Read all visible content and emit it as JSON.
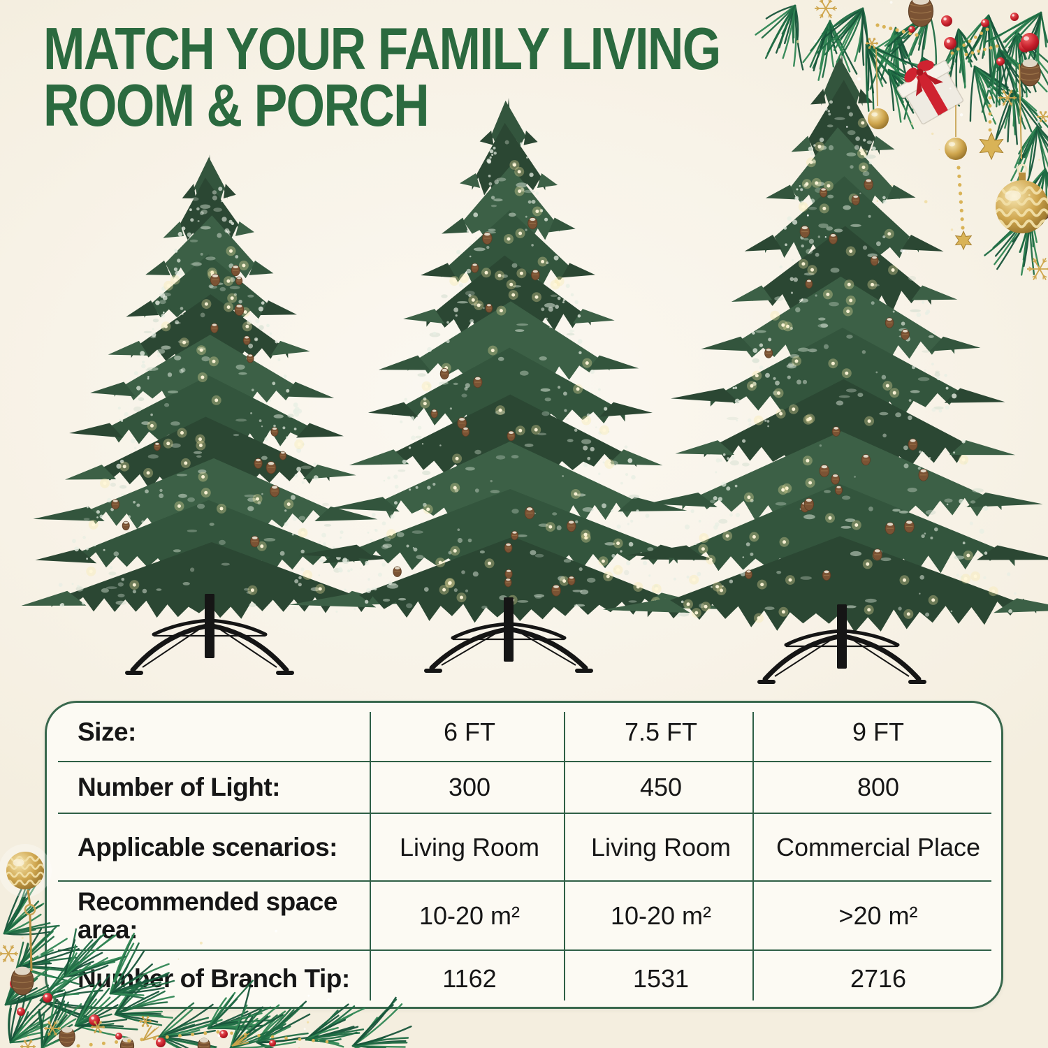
{
  "title": {
    "line1": "MATCH YOUR FAMILY LIVING",
    "line2": "ROOM & PORCH"
  },
  "colors": {
    "background": "#f8f3e8",
    "title_green": "#2b6a3f",
    "table_line_green": "#2f5f45",
    "table_border_green": "#39684d",
    "table_background": "#fcfaf3",
    "text_black": "#161616",
    "tree_green_dark": "#2b4733",
    "tree_green_mid": "#33553d",
    "tree_green_light": "#3c6046",
    "garland_green": "#1f6b43",
    "frost_white": "#e8efe4",
    "light_warm": "#f9e9a6",
    "pinecone_brown": "#7b5334",
    "stand_black": "#151515",
    "gold": "#cfa64e",
    "gold_light": "#f1dfa8",
    "berry_red": "#c8202c",
    "ribbon_red": "#cf2330"
  },
  "table": {
    "rows": [
      {
        "label": "Size:",
        "values": [
          "6 FT",
          "7.5 FT",
          "9 FT"
        ]
      },
      {
        "label": "Number of Light:",
        "values": [
          "300",
          "450",
          "800"
        ]
      },
      {
        "label": "Applicable scenarios:",
        "values": [
          "Living Room",
          "Living Room",
          "Commercial Place"
        ]
      },
      {
        "label": "Recommended space area:",
        "values": [
          "10-20 m²",
          "10-20 m²",
          ">20 m²"
        ]
      },
      {
        "label": "Number of Branch Tip:",
        "values": [
          "1162",
          "1531",
          "2716"
        ]
      }
    ]
  },
  "trees": [
    {
      "name": "tree-6ft",
      "label": "6 FT"
    },
    {
      "name": "tree-7-5ft",
      "label": "7.5 FT"
    },
    {
      "name": "tree-9ft",
      "label": "9 FT"
    }
  ],
  "decorations": {
    "top_right": "christmas-garland-with-ornaments",
    "bottom_left": "christmas-garland-with-berries",
    "left_edge": "gold-wavy-ornament-ball",
    "ornament_names": [
      "gold-ball",
      "gold-wavy-ball",
      "gold-star",
      "red-ball",
      "gift-box",
      "pinecone",
      "snowflake",
      "bead-string"
    ]
  }
}
